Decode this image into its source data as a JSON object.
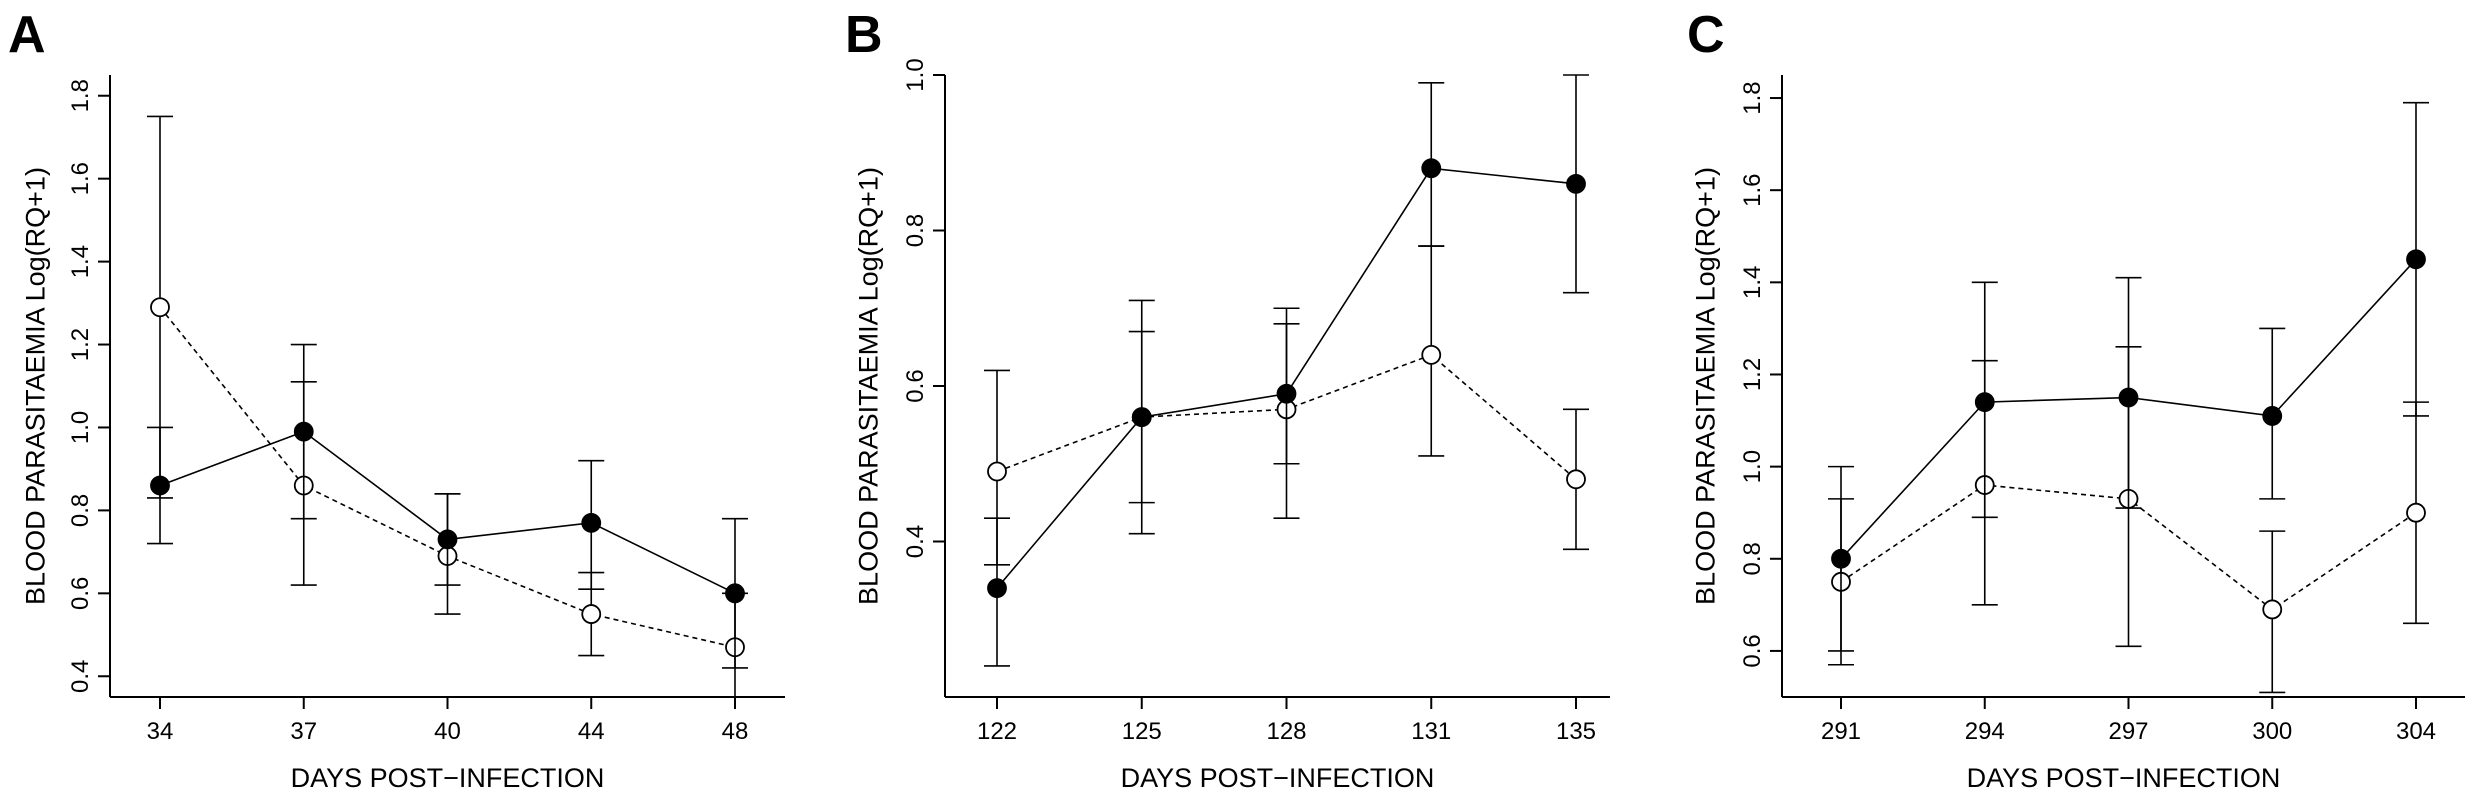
{
  "chart_data": [
    {
      "panel": "A",
      "type": "line",
      "xlabel": "DAYS POST−INFECTION",
      "ylabel": "BLOOD PARASITAEMIA Log(RQ+1)",
      "categories": [
        "34",
        "37",
        "40",
        "44",
        "48"
      ],
      "ylim": [
        0.35,
        1.85
      ],
      "yticks": [
        "0.4",
        "0.6",
        "0.8",
        "1.0",
        "1.2",
        "1.4",
        "1.6",
        "1.8"
      ],
      "series": [
        {
          "marker": "filled",
          "line": "solid",
          "values": [
            0.86,
            0.99,
            0.73,
            0.77,
            0.6
          ],
          "lower": [
            0.72,
            0.78,
            0.62,
            0.61,
            0.42
          ],
          "upper": [
            1.0,
            1.2,
            0.84,
            0.92,
            0.78
          ]
        },
        {
          "marker": "open",
          "line": "dotted",
          "values": [
            1.29,
            0.86,
            0.69,
            0.55,
            0.47
          ],
          "lower": [
            0.83,
            0.62,
            0.55,
            0.45,
            0.35
          ],
          "upper": [
            1.75,
            1.11,
            0.84,
            0.65,
            0.6
          ]
        }
      ]
    },
    {
      "panel": "B",
      "type": "line",
      "xlabel": "DAYS POST−INFECTION",
      "ylabel": "BLOOD PARASITAEMIA Log(RQ+1)",
      "categories": [
        "122",
        "125",
        "128",
        "131",
        "135"
      ],
      "ylim": [
        0.2,
        1.0
      ],
      "yticks": [
        "0.4",
        "0.6",
        "0.8",
        "1.0"
      ],
      "series": [
        {
          "marker": "filled",
          "line": "solid",
          "values": [
            0.34,
            0.56,
            0.59,
            0.88,
            0.86
          ],
          "lower": [
            0.24,
            0.45,
            0.5,
            0.78,
            0.72
          ],
          "upper": [
            0.43,
            0.67,
            0.7,
            0.99,
            1.0
          ]
        },
        {
          "marker": "open",
          "line": "dotted",
          "values": [
            0.49,
            0.56,
            0.57,
            0.64,
            0.48
          ],
          "lower": [
            0.37,
            0.41,
            0.43,
            0.51,
            0.39
          ],
          "upper": [
            0.62,
            0.71,
            0.68,
            0.78,
            0.57
          ]
        }
      ]
    },
    {
      "panel": "C",
      "type": "line",
      "xlabel": "DAYS POST−INFECTION",
      "ylabel": "BLOOD PARASITAEMIA Log(RQ+1)",
      "categories": [
        "291",
        "294",
        "297",
        "300",
        "304"
      ],
      "ylim": [
        0.5,
        1.85
      ],
      "yticks": [
        "0.6",
        "0.8",
        "1.0",
        "1.2",
        "1.4",
        "1.6",
        "1.8"
      ],
      "series": [
        {
          "marker": "filled",
          "line": "solid",
          "values": [
            0.8,
            1.14,
            1.15,
            1.11,
            1.45
          ],
          "lower": [
            0.6,
            0.89,
            0.91,
            0.93,
            1.11
          ],
          "upper": [
            1.0,
            1.4,
            1.41,
            1.3,
            1.79
          ]
        },
        {
          "marker": "open",
          "line": "dotted",
          "values": [
            0.75,
            0.96,
            0.93,
            0.69,
            0.9
          ],
          "lower": [
            0.57,
            0.7,
            0.61,
            0.51,
            0.66
          ],
          "upper": [
            0.93,
            1.23,
            1.26,
            0.86,
            1.14
          ]
        }
      ]
    }
  ]
}
